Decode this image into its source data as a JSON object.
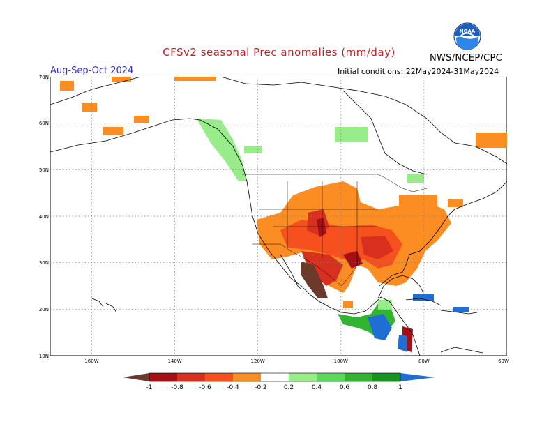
{
  "header": {
    "title": "CFSv2 seasonal Prec anomalies (mm/day)",
    "season": "Aug-Sep-Oct 2024",
    "initial_conditions": "Initial conditions: 22May2024-31May2024",
    "agency": "NWS/NCEP/CPC",
    "logo_text": "NOAA"
  },
  "map": {
    "lat_labels": [
      "70N",
      "60N",
      "50N",
      "40N",
      "30N",
      "20N",
      "10N"
    ],
    "lon_labels": [
      "160W",
      "140W",
      "120W",
      "100W",
      "80W",
      "60W"
    ],
    "extent": {
      "lon": [
        -170,
        -60
      ],
      "lat": [
        10,
        70
      ]
    },
    "grid": true
  },
  "legend": {
    "labels": [
      "-1",
      "-0.8",
      "-0.6",
      "-0.4",
      "-0.2",
      "0.2",
      "0.4",
      "0.6",
      "0.8",
      "1"
    ],
    "colors": [
      "#6b3a2a",
      "#a50f15",
      "#d7301f",
      "#f5501e",
      "#fc8d22",
      "#ffffff",
      "#98ec8a",
      "#5ad95a",
      "#31b531",
      "#14961e",
      "#1e6ed6"
    ]
  },
  "anomaly_regions": [
    {
      "name": "southwest-us-dry",
      "class": "-0.6"
    },
    {
      "name": "southern-plains-dry",
      "class": "-0.6"
    },
    {
      "name": "sierra-madre-mexico-very-dry",
      "class": "-1"
    },
    {
      "name": "eastern-us-dry",
      "class": "-0.2"
    },
    {
      "name": "central-america-wet",
      "class": "1"
    },
    {
      "name": "pacific-northwest-coast-wet",
      "class": "0.4"
    }
  ]
}
